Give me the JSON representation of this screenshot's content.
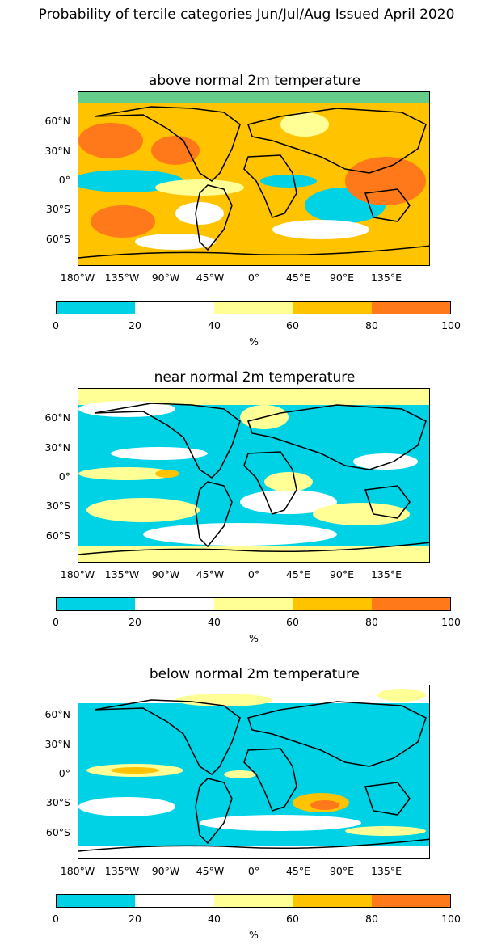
{
  "title": "Probability of tercile categories Jun/Jul/Aug Issued April 2020",
  "colors": {
    "c0_20": "#00d2e6",
    "c20_40": "#ffffff",
    "c40_60": "#ffff96",
    "c60_80": "#ffc300",
    "c80_100": "#ff7819",
    "coast": "#000000"
  },
  "lat_labels": [
    "60°N",
    "30°N",
    "0°",
    "30°S",
    "60°S"
  ],
  "lon_labels": [
    "180°W",
    "135°W",
    "90°W",
    "45°W",
    "0°",
    "45°E",
    "90°E",
    "135°E"
  ],
  "colorbar": {
    "ticks": [
      "0",
      "20",
      "40",
      "60",
      "80",
      "100"
    ],
    "unit": "%"
  },
  "panels": [
    {
      "title": "above normal 2m temperature"
    },
    {
      "title": "near normal 2m temperature"
    },
    {
      "title": "below normal 2m temperature"
    }
  ],
  "chart_data": {
    "type": "heatmap",
    "categories": [
      "above normal",
      "near normal",
      "below normal"
    ],
    "bins": [
      [
        0,
        20
      ],
      [
        20,
        40
      ],
      [
        40,
        60
      ],
      [
        60,
        80
      ],
      [
        80,
        100
      ]
    ],
    "lon_range": [
      -180,
      180
    ],
    "lat_range": [
      -90,
      90
    ]
  }
}
